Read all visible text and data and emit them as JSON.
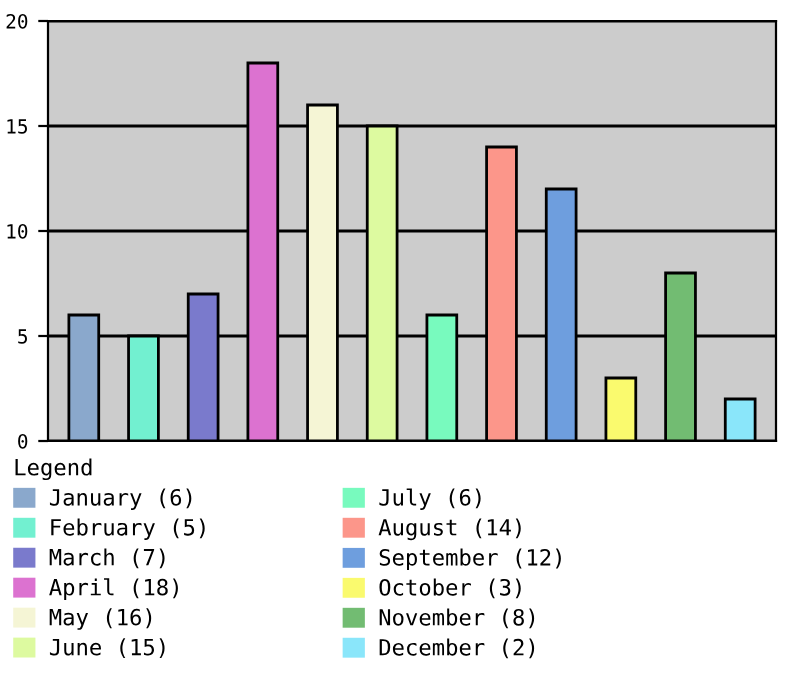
{
  "chart_data": {
    "type": "bar",
    "categories": [
      null,
      null,
      null,
      null,
      null,
      null,
      null,
      null,
      null,
      null,
      null,
      null
    ],
    "legend_title": "Legend",
    "legend": "bottom",
    "grid": "y",
    "ylim": [
      0,
      20
    ],
    "yticks": [
      0,
      5,
      10,
      15,
      20
    ],
    "series": [
      {
        "name": "January (6)",
        "color": "#8aa8cc",
        "values": [
          6,
          null,
          null,
          null,
          null,
          null,
          null,
          null,
          null,
          null,
          null,
          null
        ]
      },
      {
        "name": "February (5)",
        "color": "#72f0d0",
        "values": [
          null,
          5,
          null,
          null,
          null,
          null,
          null,
          null,
          null,
          null,
          null,
          null
        ]
      },
      {
        "name": "March (7)",
        "color": "#7a7acc",
        "values": [
          null,
          null,
          7,
          null,
          null,
          null,
          null,
          null,
          null,
          null,
          null,
          null
        ]
      },
      {
        "name": "April (18)",
        "color": "#dc72d0",
        "values": [
          null,
          null,
          null,
          18,
          null,
          null,
          null,
          null,
          null,
          null,
          null,
          null
        ]
      },
      {
        "name": "May (16)",
        "color": "#f5f5d5",
        "values": [
          null,
          null,
          null,
          null,
          16,
          null,
          null,
          null,
          null,
          null,
          null,
          null
        ]
      },
      {
        "name": "June (15)",
        "color": "#ddfaa0",
        "values": [
          null,
          null,
          null,
          null,
          null,
          15,
          null,
          null,
          null,
          null,
          null,
          null
        ]
      },
      {
        "name": "July (6)",
        "color": "#78fabe",
        "values": [
          null,
          null,
          null,
          null,
          null,
          null,
          6,
          null,
          null,
          null,
          null,
          null
        ]
      },
      {
        "name": "August (14)",
        "color": "#fc968a",
        "values": [
          null,
          null,
          null,
          null,
          null,
          null,
          null,
          14,
          null,
          null,
          null,
          null
        ]
      },
      {
        "name": "September (12)",
        "color": "#6e9ede",
        "values": [
          null,
          null,
          null,
          null,
          null,
          null,
          null,
          null,
          12,
          null,
          null,
          null
        ]
      },
      {
        "name": "October (3)",
        "color": "#fafa6e",
        "values": [
          null,
          null,
          null,
          null,
          null,
          null,
          null,
          null,
          null,
          3,
          null,
          null
        ]
      },
      {
        "name": "November (8)",
        "color": "#72bc72",
        "values": [
          null,
          null,
          null,
          null,
          null,
          null,
          null,
          null,
          null,
          null,
          8,
          null
        ]
      },
      {
        "name": "December (2)",
        "color": "#8ae6fa",
        "values": [
          null,
          null,
          null,
          null,
          null,
          null,
          null,
          null,
          null,
          null,
          null,
          2
        ]
      }
    ]
  }
}
